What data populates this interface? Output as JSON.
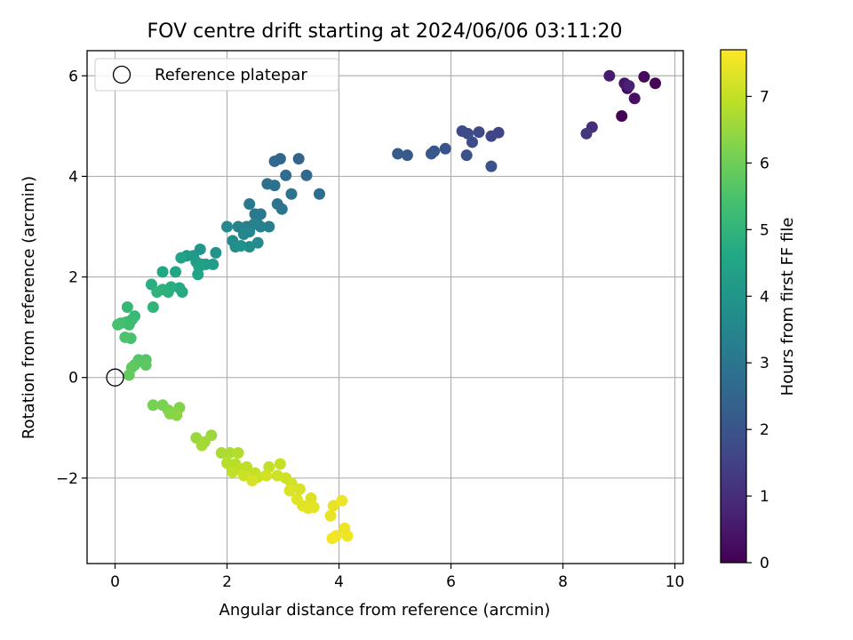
{
  "chart_data": {
    "type": "scatter",
    "title": "FOV centre drift starting at 2024/06/06 03:11:20",
    "xlabel": "Angular distance from reference (arcmin)",
    "ylabel": "Rotation from reference (arcmin)",
    "xlim": [
      -0.5,
      10.15
    ],
    "ylim": [
      -3.7,
      6.5
    ],
    "xticks": [
      0,
      2,
      4,
      6,
      8,
      10
    ],
    "xtick_labels": [
      "0",
      "2",
      "4",
      "6",
      "8",
      "10"
    ],
    "yticks": [
      -2,
      0,
      2,
      4,
      6
    ],
    "ytick_labels": [
      "−2",
      "0",
      "2",
      "4",
      "6"
    ],
    "grid": true,
    "legend": {
      "placement": "upper-left",
      "entries": [
        "Reference platepar"
      ]
    },
    "reference_point": {
      "x": 0,
      "y": 0,
      "name": "Reference platepar"
    },
    "colorbar": {
      "label": "Hours from first FF file",
      "range": [
        0,
        7.7
      ],
      "ticks": [
        0,
        1,
        2,
        3,
        4,
        5,
        6,
        7
      ],
      "tick_labels": [
        "0",
        "1",
        "2",
        "3",
        "4",
        "5",
        "6",
        "7"
      ],
      "colormap": "viridis"
    },
    "points": [
      [
        9.05,
        5.2,
        0.05
      ],
      [
        9.65,
        5.85,
        0.1
      ],
      [
        9.45,
        5.98,
        0.15
      ],
      [
        9.15,
        5.75,
        0.2
      ],
      [
        9.28,
        5.55,
        0.3
      ],
      [
        9.1,
        5.85,
        0.45
      ],
      [
        8.83,
        6.0,
        0.6
      ],
      [
        9.18,
        5.8,
        0.75
      ],
      [
        8.52,
        4.98,
        1.0
      ],
      [
        8.42,
        4.85,
        1.2
      ],
      [
        6.85,
        4.87,
        1.55
      ],
      [
        6.72,
        4.8,
        1.6
      ],
      [
        6.5,
        4.88,
        1.65
      ],
      [
        6.3,
        4.85,
        1.7
      ],
      [
        6.2,
        4.9,
        1.75
      ],
      [
        6.38,
        4.68,
        1.8
      ],
      [
        6.28,
        4.42,
        1.9
      ],
      [
        6.72,
        4.2,
        1.95
      ],
      [
        5.9,
        4.55,
        2.0
      ],
      [
        5.65,
        4.45,
        2.05
      ],
      [
        5.7,
        4.5,
        2.1
      ],
      [
        5.22,
        4.42,
        2.15
      ],
      [
        5.05,
        4.45,
        2.2
      ],
      [
        3.28,
        4.35,
        2.5
      ],
      [
        2.95,
        4.35,
        2.55
      ],
      [
        2.85,
        4.3,
        2.6
      ],
      [
        3.42,
        4.02,
        2.65
      ],
      [
        3.05,
        4.02,
        2.7
      ],
      [
        3.65,
        3.65,
        2.75
      ],
      [
        2.72,
        3.85,
        2.8
      ],
      [
        2.85,
        3.82,
        2.85
      ],
      [
        3.15,
        3.65,
        2.9
      ],
      [
        2.9,
        3.45,
        2.95
      ],
      [
        2.98,
        3.35,
        3.0
      ],
      [
        2.6,
        3.25,
        3.05
      ],
      [
        2.4,
        3.45,
        3.1
      ],
      [
        2.5,
        3.25,
        3.15
      ],
      [
        2.55,
        3.05,
        3.2
      ],
      [
        2.35,
        3.0,
        3.25
      ],
      [
        2.75,
        3.0,
        3.3
      ],
      [
        2.6,
        3.0,
        3.35
      ],
      [
        2.48,
        3.05,
        3.4
      ],
      [
        2.2,
        3.0,
        3.45
      ],
      [
        2.3,
        2.85,
        3.5
      ],
      [
        2.4,
        2.9,
        3.55
      ],
      [
        2.0,
        3.0,
        3.6
      ],
      [
        2.55,
        2.68,
        3.65
      ],
      [
        2.1,
        2.72,
        3.7
      ],
      [
        2.4,
        2.6,
        3.75
      ],
      [
        2.15,
        2.6,
        3.8
      ],
      [
        2.25,
        2.62,
        3.85
      ],
      [
        1.8,
        2.48,
        3.95
      ],
      [
        1.52,
        2.55,
        4.05
      ],
      [
        1.4,
        2.42,
        4.1
      ],
      [
        1.28,
        2.42,
        4.15
      ],
      [
        1.62,
        2.25,
        4.2
      ],
      [
        1.75,
        2.25,
        4.25
      ],
      [
        1.45,
        2.3,
        4.3
      ],
      [
        1.55,
        2.25,
        4.35
      ],
      [
        1.5,
        2.2,
        4.4
      ],
      [
        1.18,
        2.38,
        4.45
      ],
      [
        1.48,
        2.05,
        4.5
      ],
      [
        1.08,
        2.1,
        4.55
      ],
      [
        0.85,
        2.1,
        4.6
      ],
      [
        1.15,
        1.78,
        4.65
      ],
      [
        1.2,
        1.7,
        4.7
      ],
      [
        1.0,
        1.8,
        4.75
      ],
      [
        0.65,
        1.85,
        4.8
      ],
      [
        0.95,
        1.7,
        4.85
      ],
      [
        0.85,
        1.75,
        4.9
      ],
      [
        0.75,
        1.7,
        4.95
      ],
      [
        0.68,
        1.4,
        5.0
      ],
      [
        0.22,
        1.4,
        5.1
      ],
      [
        0.35,
        1.22,
        5.15
      ],
      [
        0.3,
        1.15,
        5.2
      ],
      [
        0.2,
        1.1,
        5.25
      ],
      [
        0.25,
        1.05,
        5.3
      ],
      [
        0.1,
        1.08,
        5.35
      ],
      [
        0.05,
        1.05,
        5.4
      ],
      [
        0.28,
        0.78,
        5.45
      ],
      [
        0.18,
        0.8,
        5.5
      ],
      [
        0.55,
        0.35,
        5.6
      ],
      [
        0.42,
        0.35,
        5.65
      ],
      [
        0.35,
        0.25,
        5.7
      ],
      [
        0.55,
        0.25,
        5.75
      ],
      [
        0.3,
        0.2,
        5.8
      ],
      [
        0.25,
        0.05,
        5.85
      ],
      [
        0.68,
        -0.55,
        6.1
      ],
      [
        0.85,
        -0.55,
        6.15
      ],
      [
        0.95,
        -0.65,
        6.2
      ],
      [
        1.15,
        -0.6,
        6.25
      ],
      [
        0.98,
        -0.72,
        6.3
      ],
      [
        1.1,
        -0.75,
        6.35
      ],
      [
        1.45,
        -1.2,
        6.5
      ],
      [
        1.72,
        -1.15,
        6.55
      ],
      [
        1.6,
        -1.28,
        6.6
      ],
      [
        1.55,
        -1.35,
        6.65
      ],
      [
        1.9,
        -1.5,
        6.7
      ],
      [
        2.05,
        -1.5,
        6.75
      ],
      [
        2.2,
        -1.5,
        6.8
      ],
      [
        2.0,
        -1.7,
        6.85
      ],
      [
        2.15,
        -1.72,
        6.9
      ],
      [
        2.35,
        -1.78,
        6.92
      ],
      [
        2.25,
        -1.82,
        6.95
      ],
      [
        2.1,
        -1.88,
        6.97
      ],
      [
        2.5,
        -1.9,
        7.0
      ],
      [
        2.75,
        -1.78,
        7.02
      ],
      [
        2.95,
        -1.72,
        7.05
      ],
      [
        2.55,
        -1.98,
        7.08
      ],
      [
        2.3,
        -1.95,
        7.1
      ],
      [
        2.9,
        -1.95,
        7.12
      ],
      [
        3.05,
        -2.0,
        7.15
      ],
      [
        3.15,
        -2.1,
        7.18
      ],
      [
        2.7,
        -1.95,
        7.2
      ],
      [
        2.45,
        -2.05,
        7.22
      ],
      [
        3.3,
        -2.22,
        7.25
      ],
      [
        3.12,
        -2.25,
        7.28
      ],
      [
        3.5,
        -2.4,
        7.3
      ],
      [
        3.25,
        -2.42,
        7.33
      ],
      [
        3.35,
        -2.55,
        7.35
      ],
      [
        3.45,
        -2.6,
        7.38
      ],
      [
        3.55,
        -2.58,
        7.4
      ],
      [
        3.85,
        -2.75,
        7.42
      ],
      [
        3.9,
        -2.55,
        7.45
      ],
      [
        4.05,
        -2.45,
        7.48
      ],
      [
        4.1,
        -3.0,
        7.5
      ],
      [
        4.15,
        -3.15,
        7.52
      ],
      [
        3.95,
        -3.15,
        7.55
      ],
      [
        3.88,
        -3.2,
        7.58
      ]
    ]
  }
}
